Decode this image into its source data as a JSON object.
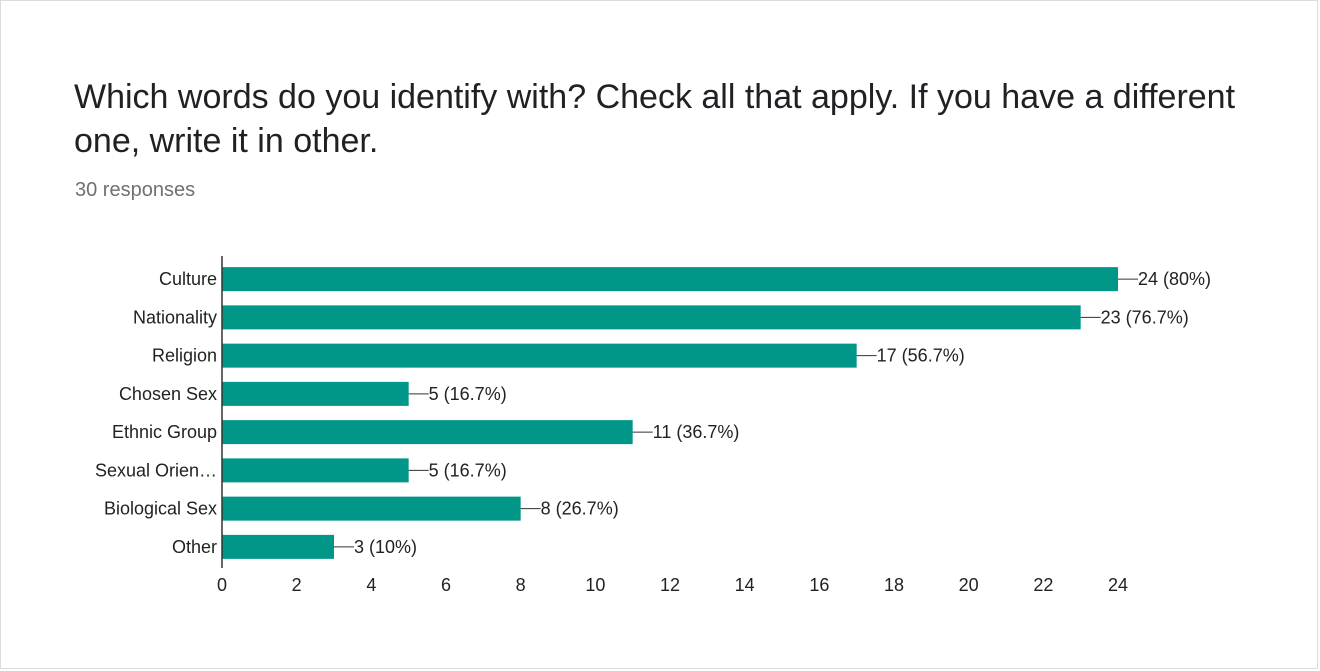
{
  "question": {
    "title": "Which words do you identify with? Check all that apply. If you have a different one, write it in other.",
    "responses_label": "30 responses"
  },
  "chart_data": {
    "type": "bar",
    "orientation": "horizontal",
    "categories": [
      "Culture",
      "Nationality",
      "Religion",
      "Chosen Sex",
      "Ethnic Group",
      "Sexual Orien…",
      "Biological Sex",
      "Other"
    ],
    "values": [
      24,
      23,
      17,
      5,
      11,
      5,
      8,
      3
    ],
    "data_labels": [
      "24 (80%)",
      "23 (76.7%)",
      "17 (56.7%)",
      "5 (16.7%)",
      "11 (36.7%)",
      "5 (16.7%)",
      "8 (26.7%)",
      "3 (10%)"
    ],
    "xlim": [
      0,
      24
    ],
    "xticks": [
      0,
      2,
      4,
      6,
      8,
      10,
      12,
      14,
      16,
      18,
      20,
      22,
      24
    ],
    "grid": false,
    "legend": "none",
    "bar_color": "#009688"
  }
}
